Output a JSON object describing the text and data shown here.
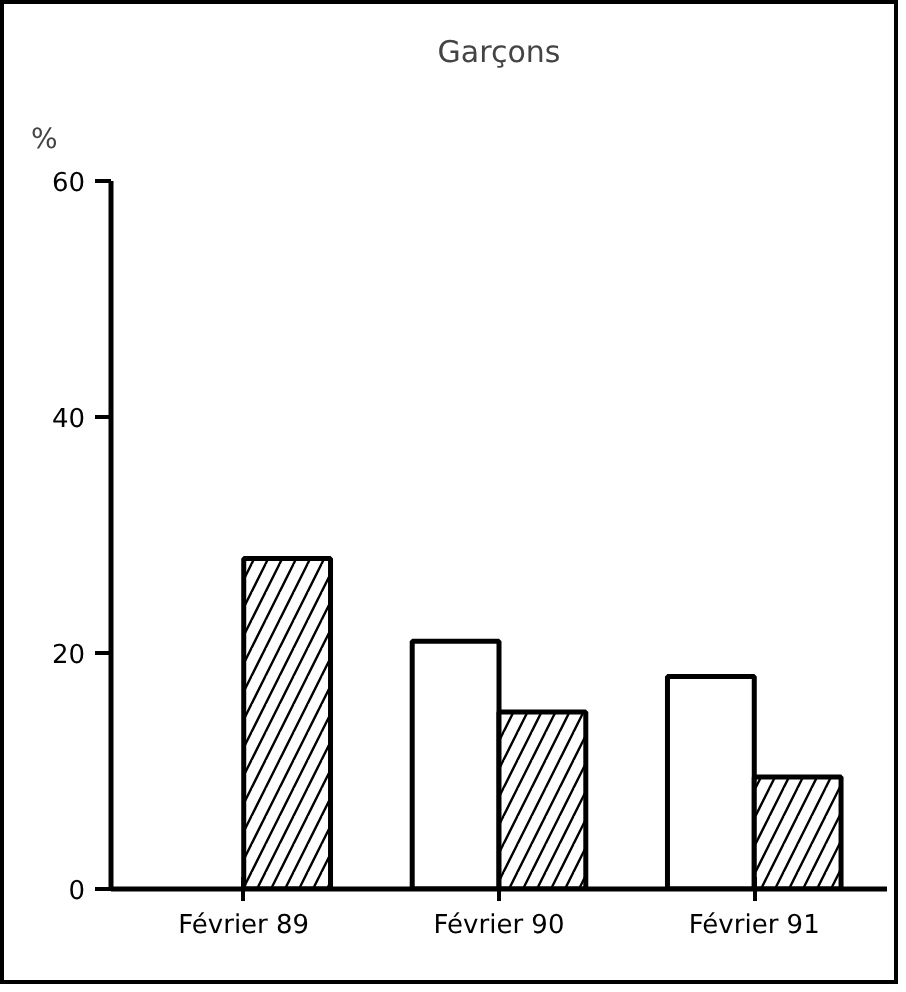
{
  "chart_data": {
    "type": "bar",
    "title": "Garçons",
    "ylabel": "%",
    "categories": [
      "Février 89",
      "Février 90",
      "Février 91"
    ],
    "series": [
      {
        "color": "#ffffff",
        "values": [
          null,
          21,
          18
        ]
      },
      {
        "color": "#ffffff",
        "values": [
          28,
          15,
          9.5
        ]
      }
    ],
    "ylim": [
      0,
      60
    ],
    "yticks": [
      0,
      20,
      40,
      60
    ],
    "grid": false
  }
}
